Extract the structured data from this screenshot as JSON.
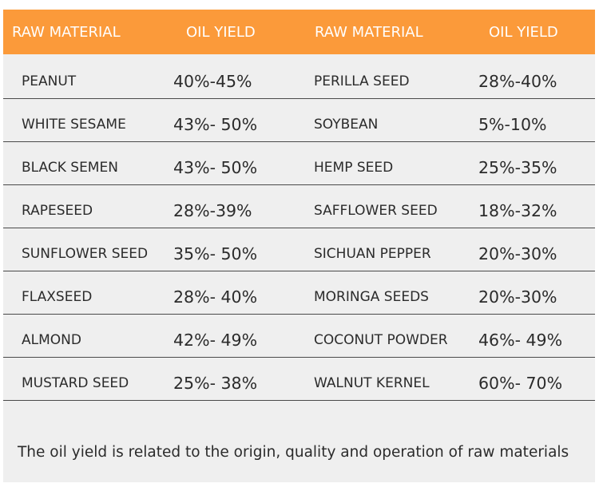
{
  "header": {
    "col1": "RAW MATERIAL",
    "col2": "OIL YIELD",
    "col3": "RAW MATERIAL",
    "col4": "OIL YIELD"
  },
  "rows": [
    {
      "left_material": "PEANUT",
      "left_yield": "40%-45%",
      "right_material": "PERILLA SEED",
      "right_yield": "28%-40%"
    },
    {
      "left_material": "WHITE SESAME",
      "left_yield": "43%- 50%",
      "right_material": "SOYBEAN",
      "right_yield": "5%-10%"
    },
    {
      "left_material": "BLACK SEMEN",
      "left_yield": "43%- 50%",
      "right_material": "HEMP SEED",
      "right_yield": "25%-35%"
    },
    {
      "left_material": "RAPESEED",
      "left_yield": "28%-39%",
      "right_material": "SAFFLOWER SEED",
      "right_yield": "18%-32%"
    },
    {
      "left_material": "SUNFLOWER SEED",
      "left_yield": "35%- 50%",
      "right_material": "SICHUAN PEPPER",
      "right_yield": "20%-30%"
    },
    {
      "left_material": "FLAXSEED",
      "left_yield": "28%- 40%",
      "right_material": "MORINGA SEEDS",
      "right_yield": "20%-30%"
    },
    {
      "left_material": "ALMOND",
      "left_yield": "42%- 49%",
      "right_material": "COCONUT POWDER",
      "right_yield": "46%- 49%"
    },
    {
      "left_material": "MUSTARD SEED",
      "left_yield": "25%- 38%",
      "right_material": "WALNUT KERNEL",
      "right_yield": "60%- 70%"
    }
  ],
  "note": "The oil yield is related to the origin, quality and operation of raw materials",
  "colors": {
    "header_background": "#fb9a3a",
    "header_text": "#ffffff",
    "table_background": "#efefef",
    "row_divider": "#4a4a4a",
    "body_text": "#2b2b2b"
  }
}
